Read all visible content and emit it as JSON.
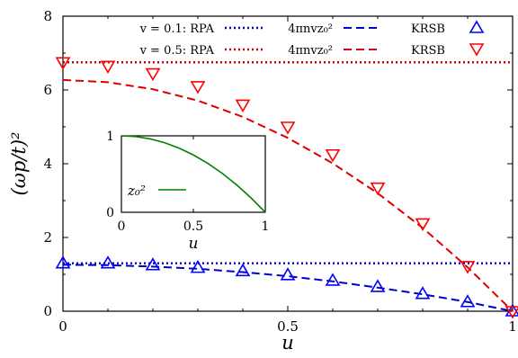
{
  "chart_data": [
    {
      "type": "line",
      "xlabel": "u",
      "ylabel": "(ωp/t)²",
      "xlim": [
        0,
        1
      ],
      "ylim": [
        0,
        8
      ],
      "xticks": [
        "0",
        "0.5",
        "1"
      ],
      "yticks": [
        "0",
        "2",
        "4",
        "6",
        "8"
      ],
      "grid": false,
      "legend_position": "top-right",
      "legend": [
        {
          "series": "v = 0.1: RPA",
          "style": "dotted",
          "color": "#0000ff"
        },
        {
          "series": "4πnvz₀²",
          "style": "dashed",
          "color": "#0000ff"
        },
        {
          "series": "KRSB",
          "style": "triangle-up",
          "color": "#0000ff"
        },
        {
          "series": "v = 0.5: RPA",
          "style": "dotted",
          "color": "#ff0000"
        },
        {
          "series": "4πnvz₀²",
          "style": "dashed",
          "color": "#ff0000"
        },
        {
          "series": "KRSB",
          "style": "triangle-down",
          "color": "#ff0000"
        }
      ],
      "series": [
        {
          "name": "v = 0.1: RPA",
          "color": "#0000cc",
          "style": "dotted",
          "constant_y": 1.3
        },
        {
          "name": "v = 0.1: 4πnvz₀²",
          "color": "#0000cc",
          "style": "dashed",
          "x": [
            0,
            0.1,
            0.2,
            0.3,
            0.4,
            0.5,
            0.6,
            0.7,
            0.8,
            0.9,
            1.0
          ],
          "y": [
            1.26,
            1.25,
            1.21,
            1.15,
            1.06,
            0.95,
            0.81,
            0.64,
            0.46,
            0.25,
            0.0
          ]
        },
        {
          "name": "v = 0.1: KRSB",
          "color": "#0000ff",
          "style": "triangle-up",
          "x": [
            0,
            0.1,
            0.2,
            0.3,
            0.4,
            0.5,
            0.6,
            0.7,
            0.8,
            0.9,
            1.0
          ],
          "y": [
            1.3,
            1.3,
            1.25,
            1.18,
            1.09,
            0.98,
            0.83,
            0.66,
            0.47,
            0.25,
            0.0
          ]
        },
        {
          "name": "v = 0.5: RPA",
          "color": "#cc0000",
          "style": "dotted",
          "constant_y": 6.75
        },
        {
          "name": "v = 0.5: 4πnvz₀²",
          "color": "#dd0000",
          "style": "dashed",
          "x": [
            0,
            0.1,
            0.2,
            0.3,
            0.4,
            0.5,
            0.6,
            0.7,
            0.8,
            0.9,
            1.0
          ],
          "y": [
            6.27,
            6.21,
            6.02,
            5.71,
            5.27,
            4.7,
            4.01,
            3.2,
            2.26,
            1.19,
            0.0
          ]
        },
        {
          "name": "v = 0.5: KRSB",
          "color": "#ff0000",
          "style": "triangle-down",
          "x": [
            0,
            0.1,
            0.2,
            0.3,
            0.4,
            0.5,
            0.6,
            0.7,
            0.8,
            0.9,
            1.0
          ],
          "y": [
            6.75,
            6.65,
            6.45,
            6.1,
            5.6,
            5.0,
            4.25,
            3.35,
            2.38,
            1.22,
            0.0
          ]
        }
      ]
    },
    {
      "type": "line",
      "xlabel": "u",
      "ylabel": "",
      "xlim": [
        0,
        1
      ],
      "ylim": [
        0,
        1
      ],
      "xticks": [
        "0",
        "0.5",
        "1"
      ],
      "yticks": [
        "0",
        "1"
      ],
      "series": [
        {
          "name": "z₀²",
          "color": "#008000",
          "x": [
            0,
            0.1,
            0.2,
            0.3,
            0.4,
            0.5,
            0.6,
            0.7,
            0.8,
            0.9,
            1.0
          ],
          "y": [
            1.0,
            0.99,
            0.96,
            0.91,
            0.84,
            0.75,
            0.64,
            0.51,
            0.36,
            0.19,
            0.0
          ]
        }
      ]
    }
  ]
}
